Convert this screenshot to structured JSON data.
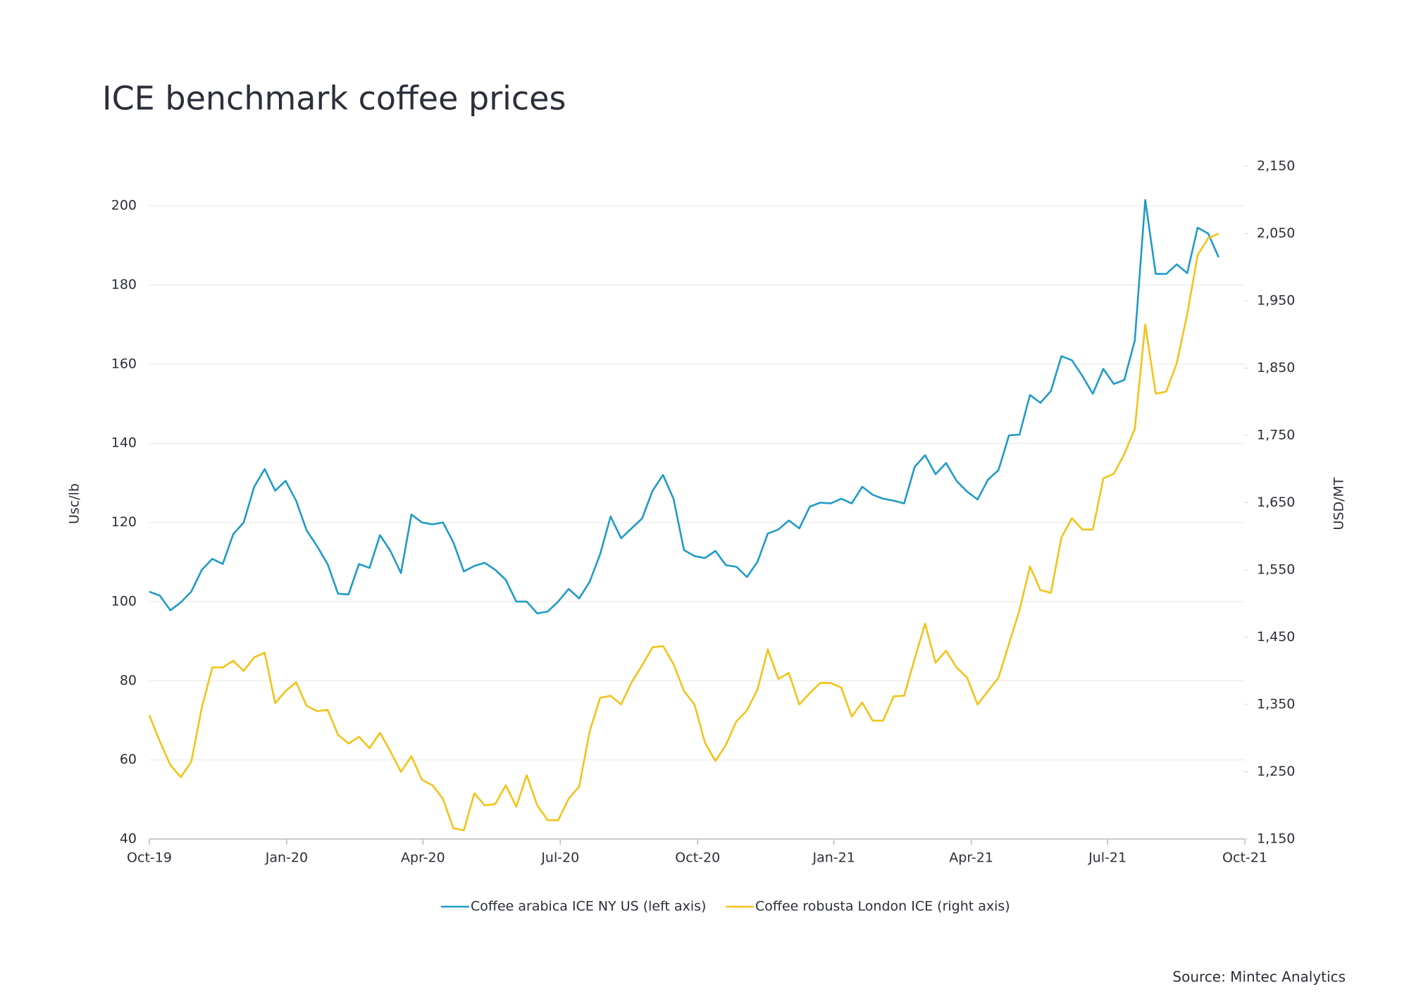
{
  "chart_data": {
    "type": "line",
    "title": "ICE benchmark coffee prices",
    "source": "Source: Mintec Analytics",
    "ylabel": "Usc/lb",
    "y2label": "USD/MT",
    "x": [
      0,
      1,
      2,
      3,
      4,
      5,
      6,
      7,
      8,
      9,
      10,
      11,
      12,
      13,
      14,
      15,
      16,
      17,
      18,
      19,
      20,
      21,
      22,
      23,
      24,
      25,
      26,
      27,
      28,
      29,
      30,
      31,
      32,
      33,
      34,
      35,
      36,
      37,
      38,
      39,
      40,
      41,
      42,
      43,
      44,
      45,
      46,
      47,
      48,
      49,
      50,
      51,
      52,
      53,
      54,
      55,
      56,
      57,
      58,
      59,
      60,
      61,
      62,
      63,
      64,
      65,
      66,
      67,
      68,
      69,
      70,
      71,
      72,
      73,
      74,
      75,
      76,
      77,
      78,
      79,
      80,
      81,
      82,
      83,
      84,
      85,
      86,
      87,
      88,
      89,
      90,
      91,
      92,
      93,
      94,
      95,
      96,
      97,
      98,
      99,
      100,
      101,
      102
    ],
    "xlim": [
      0,
      104.5
    ],
    "xticks": [
      {
        "value": 0,
        "label": "Oct-19"
      },
      {
        "value": 13.1,
        "label": "Jan-20"
      },
      {
        "value": 26.1,
        "label": "Apr-20"
      },
      {
        "value": 39.2,
        "label": "Jul-20"
      },
      {
        "value": 52.3,
        "label": "Oct-20"
      },
      {
        "value": 65.3,
        "label": "Jan-21"
      },
      {
        "value": 78.4,
        "label": "Apr-21"
      },
      {
        "value": 91.4,
        "label": "Jul-21"
      },
      {
        "value": 104.5,
        "label": "Oct-21"
      }
    ],
    "ylim": [
      40,
      210
    ],
    "yticks": [
      40,
      60,
      80,
      100,
      120,
      140,
      160,
      180,
      200
    ],
    "y2lim": [
      1150,
      2150
    ],
    "y2ticks": [
      {
        "value": 1150,
        "label": "1,150"
      },
      {
        "value": 1250,
        "label": "1,250"
      },
      {
        "value": 1350,
        "label": "1,350"
      },
      {
        "value": 1450,
        "label": "1,450"
      },
      {
        "value": 1550,
        "label": "1,550"
      },
      {
        "value": 1650,
        "label": "1,650"
      },
      {
        "value": 1750,
        "label": "1,750"
      },
      {
        "value": 1850,
        "label": "1,850"
      },
      {
        "value": 1950,
        "label": "1,950"
      },
      {
        "value": 2050,
        "label": "2,050"
      },
      {
        "value": 2150,
        "label": "2,150"
      }
    ],
    "grid": true,
    "legend": "bottom",
    "series": [
      {
        "name": "Coffee arabica ICE NY US (left axis)",
        "color": "#1f9bc6",
        "values": [
          102.5,
          101.5,
          97.8,
          99.8,
          102.5,
          108,
          110.8,
          109.5,
          117,
          120,
          129,
          133.5,
          128,
          130.5,
          125.5,
          118,
          114,
          109.5,
          102,
          101.8,
          109.5,
          108.5,
          116.8,
          112.8,
          107.2,
          122,
          120,
          119.5,
          120,
          115,
          107.6,
          109,
          109.8,
          108,
          105.5,
          100,
          100,
          97,
          97.5,
          100,
          103.2,
          100.8,
          105,
          112,
          121.5,
          116,
          118.5,
          121,
          128,
          132,
          126,
          113,
          111.5,
          111,
          112.8,
          109.2,
          108.8,
          106.2,
          110,
          117.2,
          118.2,
          120.5,
          118.5,
          124,
          125,
          124.8,
          126,
          124.8,
          129,
          127,
          126,
          125.5,
          124.8,
          134,
          137,
          132.2,
          135,
          130.5,
          127.8,
          125.8,
          130.8,
          133.2,
          142,
          142.2,
          152.2,
          150.2,
          153.2,
          162,
          161,
          157,
          152.5,
          158.8,
          155,
          156,
          166,
          201.5,
          182.8,
          182.8,
          185.2,
          183,
          194.5,
          193,
          187
        ]
      },
      {
        "name": "Coffee robusta London ICE (right axis)",
        "color": "#f2c318",
        "axis": "y2",
        "values": [
          1334,
          1295,
          1260,
          1242,
          1265,
          1345,
          1405,
          1405,
          1415,
          1400,
          1420,
          1427,
          1352,
          1370,
          1383,
          1348,
          1340,
          1342,
          1305,
          1292,
          1302,
          1285,
          1308,
          1280,
          1250,
          1273,
          1238,
          1230,
          1210,
          1166,
          1163,
          1218,
          1200,
          1202,
          1230,
          1198,
          1245,
          1200,
          1178,
          1178,
          1210,
          1228,
          1310,
          1360,
          1363,
          1350,
          1383,
          1408,
          1435,
          1437,
          1410,
          1370,
          1350,
          1293,
          1266,
          1290,
          1325,
          1341,
          1372,
          1432,
          1388,
          1397,
          1350,
          1367,
          1382,
          1382,
          1375,
          1332,
          1353,
          1326,
          1326,
          1362,
          1363,
          1418,
          1470,
          1412,
          1430,
          1405,
          1390,
          1350,
          1370,
          1390,
          1440,
          1490,
          1555,
          1520,
          1516,
          1598,
          1627,
          1610,
          1610,
          1686,
          1693,
          1722,
          1760,
          1915,
          1812,
          1815,
          1857,
          1930,
          2018,
          2043,
          2050
        ]
      }
    ]
  }
}
